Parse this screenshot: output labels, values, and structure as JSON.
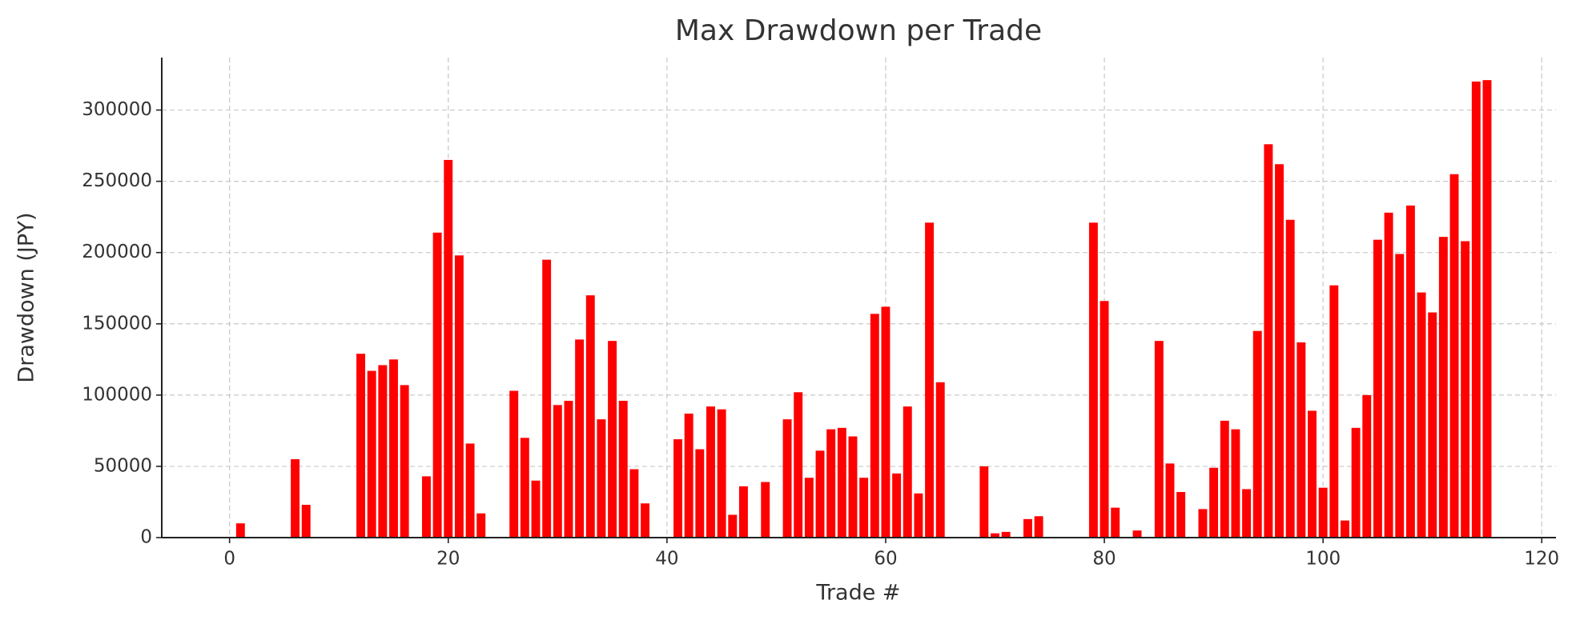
{
  "chart_data": {
    "type": "bar",
    "title": "Max Drawdown per Trade",
    "x_label": "Trade #",
    "y_label": "Drawdown (JPY)",
    "x": [
      0,
      1,
      2,
      3,
      4,
      5,
      6,
      7,
      8,
      9,
      10,
      11,
      12,
      13,
      14,
      15,
      16,
      17,
      18,
      19,
      20,
      21,
      22,
      23,
      24,
      25,
      26,
      27,
      28,
      29,
      30,
      31,
      32,
      33,
      34,
      35,
      36,
      37,
      38,
      39,
      40,
      41,
      42,
      43,
      44,
      45,
      46,
      47,
      48,
      49,
      50,
      51,
      52,
      53,
      54,
      55,
      56,
      57,
      58,
      59,
      60,
      61,
      62,
      63,
      64,
      65,
      66,
      67,
      68,
      69,
      70,
      71,
      72,
      73,
      74,
      75,
      76,
      77,
      78,
      79,
      80,
      81,
      82,
      83,
      84,
      85,
      86,
      87,
      88,
      89,
      90,
      91,
      92,
      93,
      94,
      95,
      96,
      97,
      98,
      99,
      100,
      101,
      102,
      103,
      104,
      105,
      106,
      107,
      108,
      109,
      110,
      111,
      112,
      113,
      114,
      115
    ],
    "values": [
      0,
      10000,
      0,
      0,
      0,
      0,
      55000,
      23000,
      0,
      0,
      0,
      0,
      129000,
      117000,
      121000,
      125000,
      107000,
      0,
      43000,
      214000,
      265000,
      198000,
      66000,
      17000,
      0,
      0,
      103000,
      70000,
      40000,
      195000,
      93000,
      96000,
      139000,
      170000,
      83000,
      138000,
      96000,
      48000,
      24000,
      0,
      0,
      69000,
      87000,
      62000,
      92000,
      90000,
      16000,
      36000,
      0,
      39000,
      0,
      83000,
      102000,
      42000,
      61000,
      76000,
      77000,
      71000,
      42000,
      157000,
      162000,
      45000,
      92000,
      31000,
      221000,
      109000,
      0,
      0,
      0,
      50000,
      3000,
      4000,
      0,
      13000,
      15000,
      0,
      0,
      0,
      0,
      221000,
      166000,
      21000,
      0,
      5000,
      0,
      138000,
      52000,
      32000,
      0,
      20000,
      49000,
      82000,
      76000,
      34000,
      145000,
      276000,
      262000,
      223000,
      137000,
      89000,
      35000,
      177000,
      12000,
      77000,
      100000,
      209000,
      228000,
      199000,
      233000,
      172000,
      158000,
      211000,
      255000,
      208000,
      320000,
      321000
    ],
    "color": "#ff0000",
    "bar_width": 0.8,
    "xlim": [
      -6.2,
      121.3
    ],
    "xticks": [
      0,
      20,
      40,
      60,
      80,
      100,
      120
    ],
    "ylim": [
      0,
      336800
    ],
    "yticks": [
      0,
      50000,
      100000,
      150000,
      200000,
      250000,
      300000
    ],
    "grid": true
  }
}
